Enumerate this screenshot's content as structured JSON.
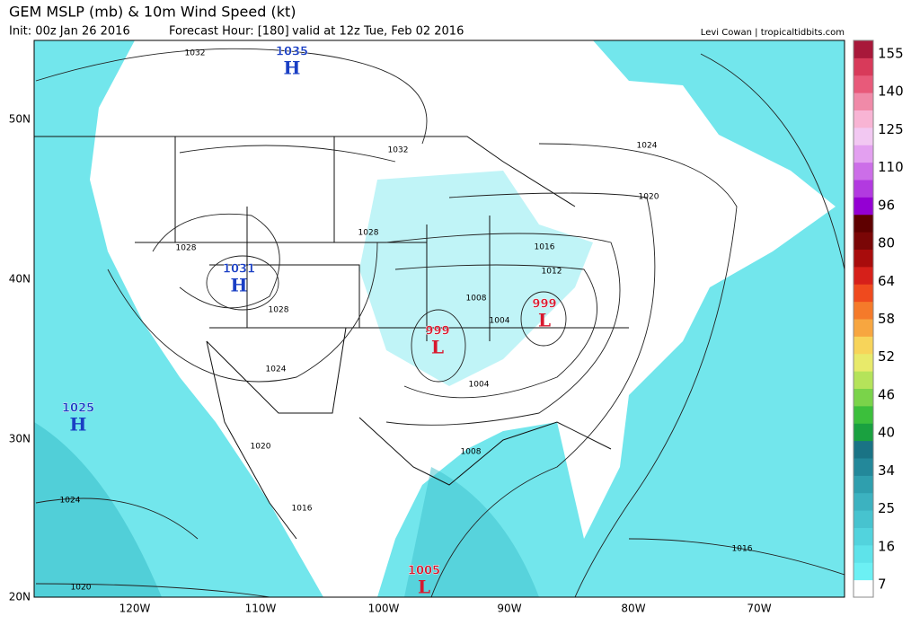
{
  "header": {
    "title": "GEM MSLP (mb) & 10m Wind Speed (kt)",
    "init": "Init: 00z Jan 26 2016",
    "forecast_hour": "Forecast Hour: [180]",
    "valid": "valid at 12z Tue, Feb 02 2016",
    "credit": "Levi Cowan | tropicaltidbits.com"
  },
  "map": {
    "lat_labels": [
      "50N",
      "40N",
      "30N",
      "20N"
    ],
    "lon_labels": [
      "120W",
      "110W",
      "100W",
      "90W",
      "80W",
      "70W"
    ],
    "pressure_centers": [
      {
        "symbol": "H",
        "value": "1035"
      },
      {
        "symbol": "H",
        "value": "1031"
      },
      {
        "symbol": "H",
        "value": "1025"
      },
      {
        "symbol": "L",
        "value": "999"
      },
      {
        "symbol": "L",
        "value": "999"
      },
      {
        "symbol": "L",
        "value": "1005"
      }
    ],
    "isobar_labels": [
      "1032",
      "1032",
      "1028",
      "1028",
      "1028",
      "1024",
      "1024",
      "1020",
      "1016",
      "1012",
      "1008",
      "1004",
      "1004",
      "1008",
      "1020",
      "1016",
      "1024",
      "1020",
      "1016"
    ]
  },
  "colorbar": {
    "ticks": [
      "155",
      "140",
      "125",
      "110",
      "96",
      "80",
      "64",
      "58",
      "52",
      "46",
      "40",
      "34",
      "25",
      "16",
      "7"
    ],
    "colors": [
      "#ffffff",
      "#6cf0f4",
      "#5ee3ea",
      "#52d3dd",
      "#47c3cf",
      "#3cb2c0",
      "#2f9fae",
      "#23889a",
      "#1a7385",
      "#1aa140",
      "#3cbf3c",
      "#7ad34a",
      "#b5e35a",
      "#e8ea6a",
      "#f7d45a",
      "#f7a640",
      "#f57a2a",
      "#ef4a1e",
      "#d6201a",
      "#a80c0c",
      "#7a0606",
      "#5e0000",
      "#9400d3",
      "#b23ae0",
      "#cc6ee8",
      "#e3a0f0",
      "#f2c8f2",
      "#f8b4d4",
      "#f08aa8",
      "#e85a7a",
      "#d83a5a",
      "#a8183a"
    ]
  }
}
